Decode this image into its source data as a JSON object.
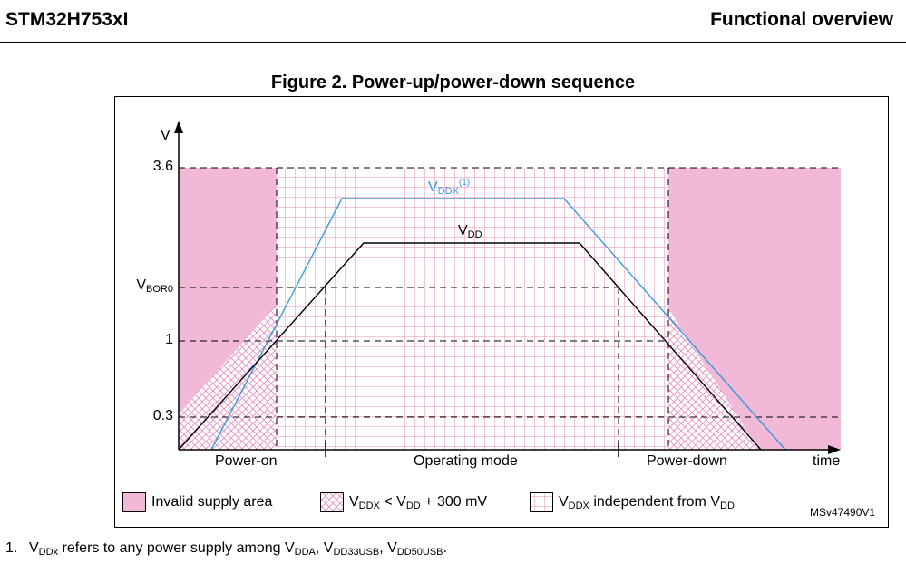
{
  "header": {
    "left": "STM32H753xI",
    "right": "Functional overview"
  },
  "figure": {
    "title": "Figure 2. Power-up/power-down sequence",
    "ref": "MSv47490V1"
  },
  "axes": {
    "y_label": "V",
    "x_label": "time",
    "y_ticks": [
      "3.6",
      "1",
      "0.3"
    ],
    "vbor_main": "V",
    "vbor_sub": "BOR0"
  },
  "curves": {
    "vddx": {
      "main": "V",
      "sub": "DDX",
      "sup": "(1)",
      "color": "#3a9ad9"
    },
    "vdd": {
      "main": "V",
      "sub": "DD",
      "color": "#000000"
    }
  },
  "phases": [
    "Power-on",
    "Operating mode",
    "Power-down"
  ],
  "legend": {
    "invalid": "Invalid supply area",
    "hatch_a": "V",
    "hatch_a_sub": "DDX",
    "hatch_b": " < V",
    "hatch_b_sub": "DD",
    "hatch_c": " + 300 mV",
    "grid_a": "V",
    "grid_a_sub": "DDX",
    "grid_b": " independent from V",
    "grid_b_sub": "DD"
  },
  "colors": {
    "invalid_fill": "#f2b8d8",
    "pattern": "#e58fbd"
  },
  "footnote": {
    "num": "1.",
    "t1": "V",
    "t1_sub": "DDx",
    "t2": " refers to any power supply among V",
    "t2_sub": "DDA",
    "t3": ", V",
    "t3_sub": "DD33USB",
    "t4": ", V",
    "t4_sub": "DD50USB",
    "t5": "."
  }
}
